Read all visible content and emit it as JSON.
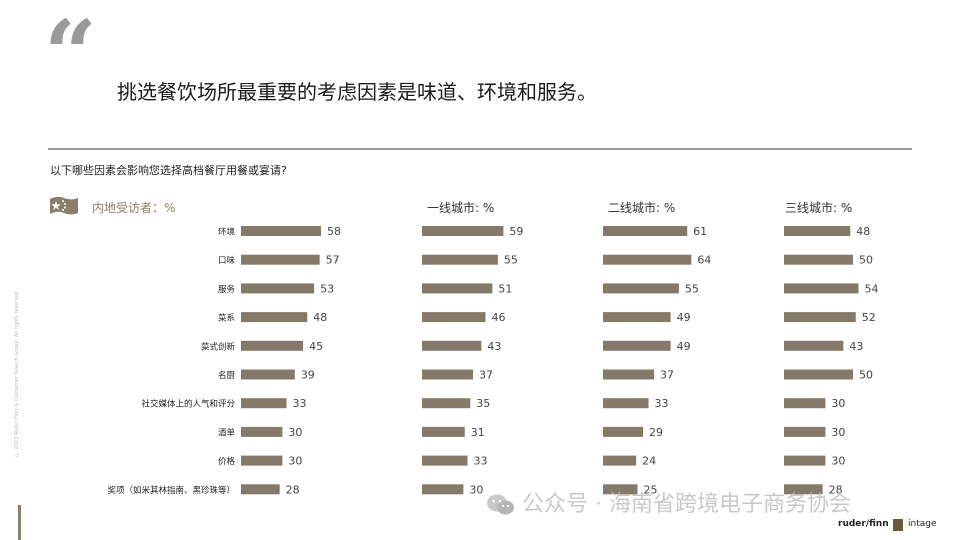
{
  "header": {
    "quote_mark": "“",
    "headline": "挑选餐饮场所最重要的考虑因素是味道、环境和服务。",
    "question": "以下哪些因素会影响您选择高档餐厅用餐或宴请?"
  },
  "footer": {
    "copyright": "© 2023 Ruder Finn & Consumer Search Group. All rights reserved.",
    "watermark": "公众号 · 海南省跨境电子商务协会",
    "logo_ruderfinn": "ruder/finn",
    "logo_intage": "intage"
  },
  "colors": {
    "bar": "#857a69",
    "accent": "#8a7f6a",
    "rule": "#9a9a9a"
  },
  "chart_data": {
    "type": "bar",
    "orientation": "horizontal",
    "categories": [
      "环境",
      "口味",
      "服务",
      "菜系",
      "菜式创新",
      "名厨",
      "社交媒体上的人气和评分",
      "酒单",
      "价格",
      "奖项（如米其林指南、黑珍珠等）"
    ],
    "panels": [
      {
        "label": "内地受访者：%",
        "values": [
          58,
          57,
          53,
          48,
          45,
          39,
          33,
          30,
          30,
          28
        ]
      },
      {
        "label": "一线城市: %",
        "values": [
          59,
          55,
          51,
          46,
          43,
          37,
          35,
          31,
          33,
          30
        ]
      },
      {
        "label": "二线城市: %",
        "values": [
          61,
          64,
          55,
          49,
          49,
          37,
          33,
          29,
          24,
          25
        ]
      },
      {
        "label": "三线城市: %",
        "values": [
          48,
          50,
          54,
          52,
          43,
          50,
          30,
          30,
          30,
          28
        ]
      }
    ]
  }
}
